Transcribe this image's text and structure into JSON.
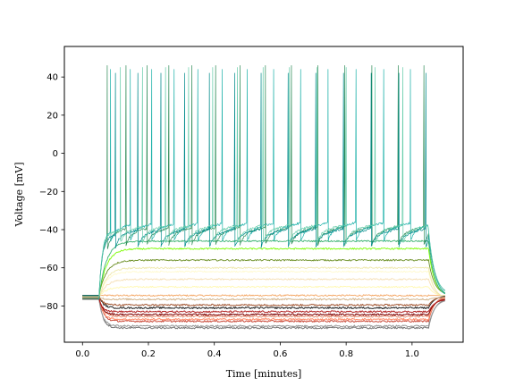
{
  "chart_data": {
    "type": "line",
    "title": "",
    "xlabel": "Time [minutes]",
    "ylabel": "Voltage [mV]",
    "xlim": [
      -0.055,
      1.155
    ],
    "ylim": [
      -99,
      56
    ],
    "xticks": [
      0.0,
      0.2,
      0.4,
      0.6,
      0.8,
      1.0
    ],
    "xtick_labels": [
      "0.0",
      "0.2",
      "0.4",
      "0.6",
      "0.8",
      "1.0"
    ],
    "yticks": [
      -80,
      -60,
      -40,
      -20,
      0,
      20,
      40
    ],
    "ytick_labels": [
      "−80",
      "−60",
      "−40",
      "−20",
      "0",
      "20",
      "40"
    ],
    "grid": false,
    "legend": "none",
    "stimulus_window": [
      0.05,
      1.05
    ],
    "x_end": 1.1,
    "rest_levels_mv": [
      -74.5,
      -75,
      -75.5,
      -76,
      -76.5
    ],
    "hyperpolarized_traces": [
      {
        "color": "#737373",
        "steady": -91.5,
        "amplitude_step": -16
      },
      {
        "color": "#9a9a9a",
        "steady": -90.5,
        "amplitude_step": -15
      },
      {
        "color": "#c94a3a",
        "steady": -88,
        "amplitude_step": -13
      },
      {
        "color": "#ff8c69",
        "steady": -87,
        "amplitude_step": -12
      },
      {
        "color": "#e9967a",
        "steady": -85.5,
        "amplitude_step": -10.5
      },
      {
        "color": "#800000",
        "steady": -84.5,
        "amplitude_step": -9.5
      },
      {
        "color": "#b22222",
        "steady": -83,
        "amplitude_step": -8
      },
      {
        "color": "#222222",
        "steady": -81,
        "amplitude_step": -6
      },
      {
        "color": "#a0522d",
        "steady": -79.5,
        "amplitude_step": -4.5
      },
      {
        "color": "#d2b48c",
        "steady": -76.5,
        "amplitude_step": -1.5
      }
    ],
    "depolarized_traces": [
      {
        "color": "#f4a460",
        "steady": -74.5
      },
      {
        "color": "#fff8b0",
        "steady": -70
      },
      {
        "color": "#f5deb3",
        "steady": -66
      },
      {
        "color": "#fffacd",
        "steady": -62
      },
      {
        "color": "#eee8aa",
        "steady": -60
      },
      {
        "color": "#6b8e23",
        "steady": -56
      },
      {
        "color": "#7cfc00",
        "steady": -50
      },
      {
        "color": "#3cb371",
        "steady": -46
      }
    ],
    "spiking_traces": [
      {
        "color": "#2e8b57",
        "baseline": -42,
        "peak": 46,
        "spike_times": [
          0.075,
          0.132,
          0.196,
          0.262,
          0.332,
          0.404,
          0.478,
          0.555,
          0.634,
          0.714,
          0.796,
          0.878,
          0.958,
          1.036
        ]
      },
      {
        "color": "#20b2aa",
        "baseline": -40,
        "peak": 44,
        "spike_times": [
          0.085,
          0.145,
          0.21,
          0.278,
          0.35,
          0.424,
          0.5,
          0.58,
          0.662,
          0.745,
          0.83,
          0.914,
          0.995
        ]
      },
      {
        "color": "#008b8b",
        "baseline": -43,
        "peak": 42,
        "spike_times": [
          0.1,
          0.168,
          0.238,
          0.31,
          0.385,
          0.462,
          0.542,
          0.624,
          0.708,
          0.792,
          0.876,
          0.96,
          1.042
        ]
      },
      {
        "color": "#66cdaa",
        "baseline": -41,
        "peak": 45,
        "spike_times": [
          0.115,
          0.182,
          0.252,
          0.322,
          0.395,
          0.47,
          0.548,
          0.628,
          0.712,
          0.8,
          0.888,
          0.972
        ]
      }
    ]
  }
}
